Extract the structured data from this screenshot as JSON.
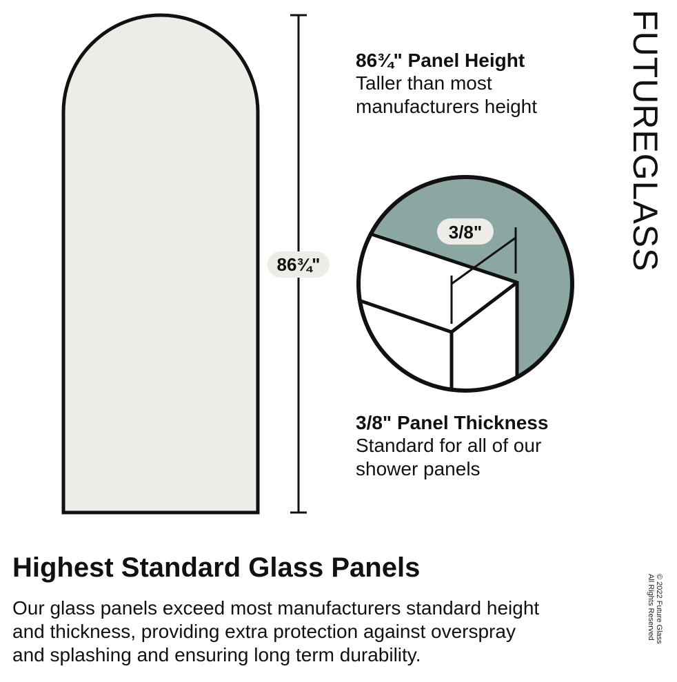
{
  "brand": "FUTUREGLASS",
  "copyright": [
    "© 2022 Future Glass",
    "All Rights Reserved"
  ],
  "height_label": "86¾\"",
  "thickness_label": "3/8\"",
  "height_feature": {
    "title": "86¾\" Panel Height",
    "lines": [
      "Taller than most",
      "manufacturers height"
    ]
  },
  "thickness_feature": {
    "title": "3/8\" Panel Thickness",
    "lines": [
      "Standard for all of our",
      "shower panels"
    ]
  },
  "heading": "Highest Standard Glass Panels",
  "body": [
    "Our glass panels exceed most manufacturers standard height",
    "and thickness, providing extra protection against overspray",
    "and splashing and ensuring long term durability."
  ],
  "colors": {
    "panel": "#eeece8",
    "teal": "#8ca7a2",
    "pill": "#eeece8",
    "ink": "#111111"
  }
}
